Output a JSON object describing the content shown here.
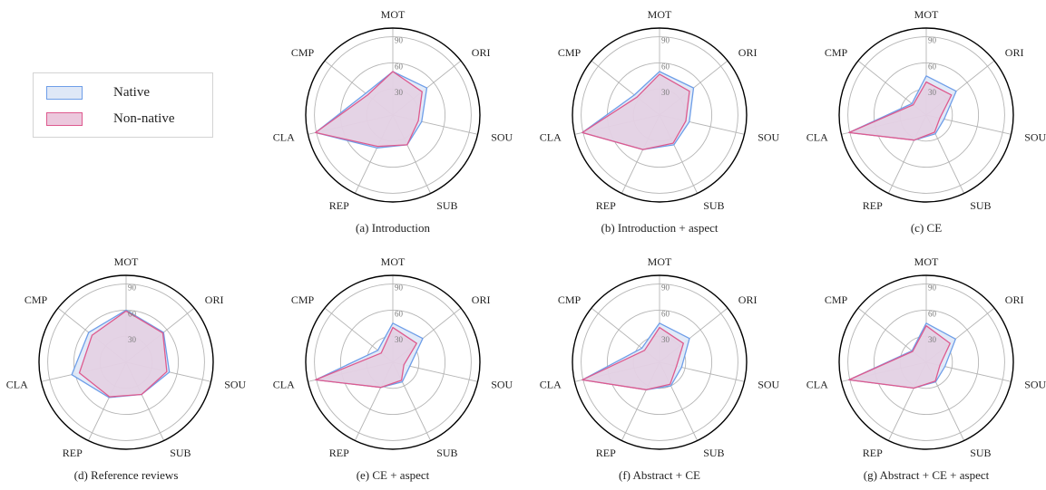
{
  "legend": {
    "items": [
      {
        "label": "Native",
        "fill": "#dfe8f7",
        "stroke": "#6e9ee8"
      },
      {
        "label": "Non-native",
        "fill": "#ecc8dd",
        "stroke": "#de5a8e"
      }
    ]
  },
  "colors": {
    "native_fill": "#dfe8f7",
    "native_stroke": "#6e9ee8",
    "nonnative_fill": "#e6c3d9",
    "nonnative_stroke": "#de5a8e",
    "grid": "#b5b5b5",
    "outer_ring": "#000000"
  },
  "chart_data": [
    {
      "type": "radar",
      "caption": "(a) Introduction",
      "axes": [
        "MOT",
        "ORI",
        "SOU",
        "SUB",
        "REP",
        "CLA",
        "CMP"
      ],
      "ticks": [
        30,
        60,
        90
      ],
      "rmax": 100,
      "grid": true,
      "series": [
        {
          "name": "Native",
          "values": [
            50,
            50,
            34,
            38,
            42,
            91,
            40
          ]
        },
        {
          "name": "Non-native",
          "values": [
            50,
            43,
            30,
            38,
            40,
            91,
            37
          ]
        }
      ]
    },
    {
      "type": "radar",
      "caption": "(b) Introduction + aspect",
      "axes": [
        "MOT",
        "ORI",
        "SOU",
        "SUB",
        "REP",
        "CLA",
        "CMP"
      ],
      "ticks": [
        30,
        60,
        90
      ],
      "rmax": 100,
      "grid": true,
      "series": [
        {
          "name": "Native",
          "values": [
            50,
            50,
            35,
            38,
            44,
            91,
            37
          ]
        },
        {
          "name": "Non-native",
          "values": [
            47,
            44,
            31,
            36,
            44,
            91,
            33
          ]
        }
      ]
    },
    {
      "type": "radar",
      "caption": "(c) CE",
      "axes": [
        "MOT",
        "ORI",
        "SOU",
        "SUB",
        "REP",
        "CLA",
        "CMP"
      ],
      "ticks": [
        30,
        60,
        90
      ],
      "rmax": 100,
      "grid": true,
      "series": [
        {
          "name": "Native",
          "values": [
            45,
            44,
            21,
            24,
            32,
            91,
            21
          ]
        },
        {
          "name": "Non-native",
          "values": [
            38,
            37,
            16,
            22,
            32,
            91,
            19
          ]
        }
      ]
    },
    {
      "type": "radar",
      "caption": "(d) Reference reviews",
      "axes": [
        "MOT",
        "ORI",
        "SOU",
        "SUB",
        "REP",
        "CLA",
        "CMP"
      ],
      "ticks": [
        30,
        60,
        90
      ],
      "rmax": 100,
      "grid": true,
      "series": [
        {
          "name": "Native",
          "values": [
            60,
            55,
            51,
            41,
            45,
            64,
            55
          ]
        },
        {
          "name": "Non-native",
          "values": [
            59,
            54,
            48,
            41,
            44,
            55,
            50
          ]
        }
      ]
    },
    {
      "type": "radar",
      "caption": "(e) CE + aspect",
      "axes": [
        "MOT",
        "ORI",
        "SOU",
        "SUB",
        "REP",
        "CLA",
        "CMP"
      ],
      "ticks": [
        30,
        60,
        90
      ],
      "rmax": 100,
      "grid": true,
      "series": [
        {
          "name": "Native",
          "values": [
            45,
            44,
            20,
            25,
            32,
            91,
            22
          ]
        },
        {
          "name": "Non-native",
          "values": [
            40,
            35,
            13,
            23,
            32,
            91,
            17
          ]
        }
      ]
    },
    {
      "type": "radar",
      "caption": "(f) Abstract + CE",
      "axes": [
        "MOT",
        "ORI",
        "SOU",
        "SUB",
        "REP",
        "CLA",
        "CMP"
      ],
      "ticks": [
        30,
        60,
        90
      ],
      "rmax": 100,
      "grid": true,
      "series": [
        {
          "name": "Native",
          "values": [
            45,
            44,
            26,
            30,
            35,
            91,
            26
          ]
        },
        {
          "name": "Non-native",
          "values": [
            40,
            35,
            20,
            28,
            35,
            91,
            22
          ]
        }
      ]
    },
    {
      "type": "radar",
      "caption": "(g) Abstract + CE + aspect",
      "axes": [
        "MOT",
        "ORI",
        "SOU",
        "SUB",
        "REP",
        "CLA",
        "CMP"
      ],
      "ticks": [
        30,
        60,
        90
      ],
      "rmax": 100,
      "grid": true,
      "series": [
        {
          "name": "Native",
          "values": [
            45,
            43,
            22,
            25,
            33,
            91,
            21
          ]
        },
        {
          "name": "Non-native",
          "values": [
            42,
            35,
            16,
            24,
            33,
            91,
            20
          ]
        }
      ]
    }
  ]
}
